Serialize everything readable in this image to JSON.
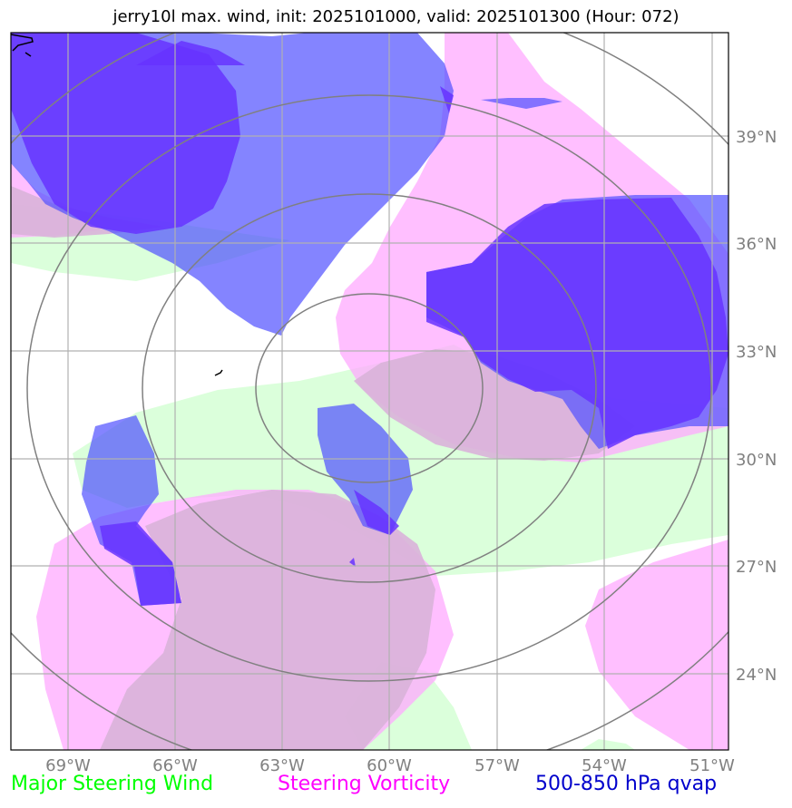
{
  "title": "jerry10l max. wind, init: 2025101000, valid: 2025101300 (Hour: 072)",
  "legend": [
    {
      "label": "Major Steering Wind",
      "color": "#00ff00"
    },
    {
      "label": "Steering Vorticity",
      "color": "#ff00ff"
    },
    {
      "label": "500-850 hPa qvap",
      "color": "#0000cc"
    }
  ],
  "lon_labels": [
    "69°W",
    "66°W",
    "63°W",
    "60°W",
    "57°W",
    "54°W",
    "51°W"
  ],
  "lat_labels": [
    "39°N",
    "36°N",
    "33°N",
    "30°N",
    "27°N",
    "24°N"
  ],
  "colors": {
    "wind_fill": "#ccffcc",
    "vorticity_fill": "#ffaaff",
    "qvap_fill": "#5050ff",
    "qvap_dark_fill": "#6633ff",
    "overlap_fill": "#d9b3d9",
    "grid": "#b0b0b0",
    "range_rings": "#808080",
    "tick_labels": "#808080"
  }
}
